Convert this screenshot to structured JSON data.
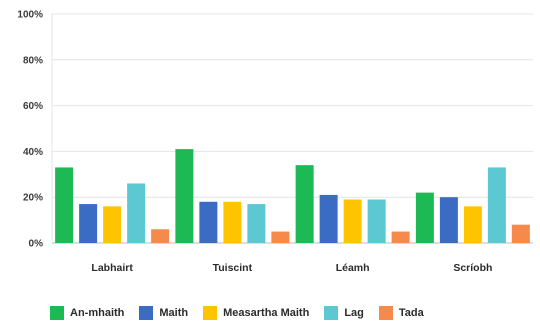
{
  "chart_data": {
    "type": "bar",
    "title": "",
    "xlabel": "",
    "ylabel": "",
    "categories": [
      "Labhairt",
      "Tuiscint",
      "Léamh",
      "Scríobh"
    ],
    "ylim": [
      0,
      100
    ],
    "yticks": [
      "0%",
      "20%",
      "40%",
      "60%",
      "80%",
      "100%"
    ],
    "grid": true,
    "legend_position": "bottom",
    "series": [
      {
        "name": "An-mhaith",
        "color": "#1db954",
        "values": [
          33,
          41,
          34,
          22
        ]
      },
      {
        "name": "Maith",
        "color": "#3b6cc4",
        "values": [
          17,
          18,
          21,
          20
        ]
      },
      {
        "name": "Measartha Maith",
        "color": "#ffc400",
        "values": [
          16,
          18,
          19,
          16
        ]
      },
      {
        "name": "Lag",
        "color": "#5bc8d2",
        "values": [
          26,
          17,
          19,
          33
        ]
      },
      {
        "name": "Tada",
        "color": "#f58a4b",
        "values": [
          6,
          5,
          5,
          8
        ]
      }
    ]
  }
}
